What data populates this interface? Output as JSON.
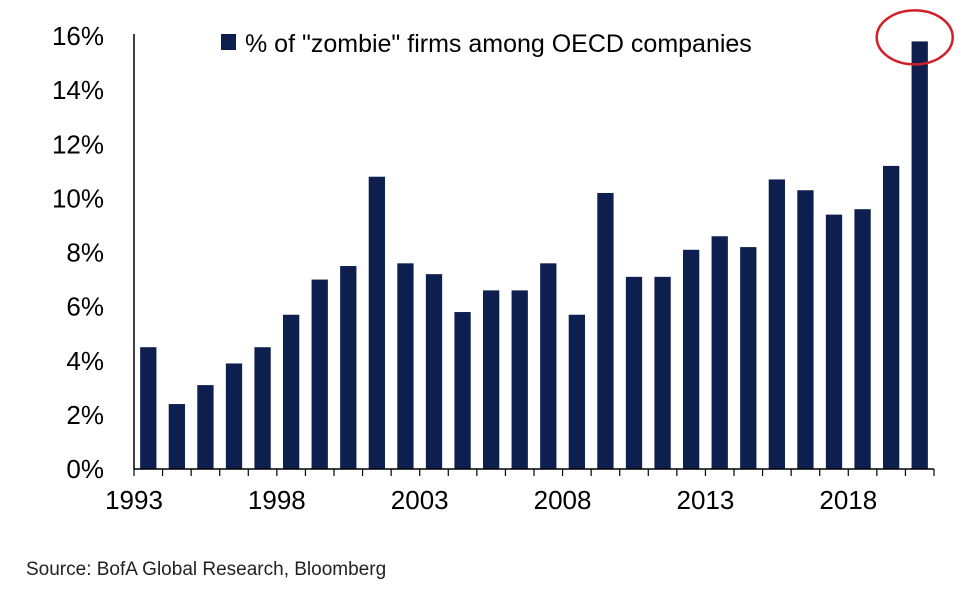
{
  "chart_data": {
    "type": "bar",
    "categories": [
      "1993",
      "1994",
      "1995",
      "1996",
      "1997",
      "1998",
      "1999",
      "2000",
      "2001",
      "2002",
      "2003",
      "2004",
      "2005",
      "2006",
      "2007",
      "2008",
      "2009",
      "2010",
      "2011",
      "2012",
      "2013",
      "2014",
      "2015",
      "2016",
      "2017",
      "2018",
      "2019",
      "2020"
    ],
    "series": [
      {
        "name": "% of \"zombie\" firms among OECD companies",
        "values": [
          4.5,
          2.4,
          3.1,
          3.9,
          4.5,
          5.7,
          7.0,
          7.5,
          10.8,
          7.6,
          7.2,
          5.8,
          6.6,
          6.6,
          7.6,
          5.7,
          10.2,
          7.1,
          7.1,
          8.1,
          8.6,
          8.2,
          10.7,
          10.3,
          9.4,
          9.6,
          11.2,
          15.8
        ],
        "color": "#0c1f4f"
      }
    ],
    "title": "",
    "xlabel": "",
    "ylabel": "",
    "ylim": [
      0,
      16
    ],
    "yticks": [
      0,
      2,
      4,
      6,
      8,
      10,
      12,
      14,
      16
    ],
    "ytick_labels": [
      "0%",
      "2%",
      "4%",
      "6%",
      "8%",
      "10%",
      "12%",
      "14%",
      "16%"
    ],
    "xtick_labels": [
      "1993",
      "1998",
      "2003",
      "2008",
      "2013",
      "2018"
    ],
    "grid": false,
    "legend_position": "top",
    "highlight": {
      "category": "2020",
      "shape": "circle",
      "color": "#d0202a"
    }
  },
  "source": "Source: BofA Global Research, Bloomberg"
}
